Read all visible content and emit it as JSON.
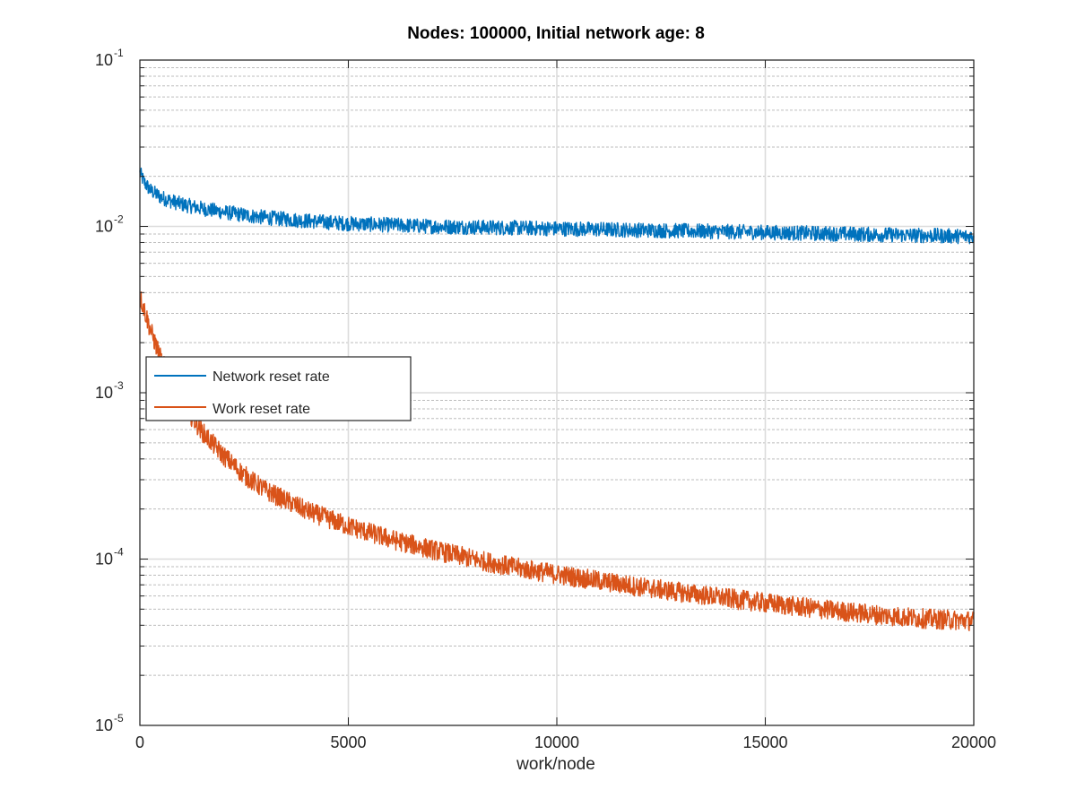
{
  "chart_data": {
    "type": "line",
    "title": "Nodes: 100000, Initial network age: 8",
    "xlabel": "work/node",
    "ylabel": "",
    "xlim": [
      0,
      20000
    ],
    "ylim": [
      1e-05,
      0.1
    ],
    "yscale": "log",
    "grid": true,
    "legend_position": "middle-left",
    "x_ticks": [
      "0",
      "5000",
      "10000",
      "15000",
      "20000"
    ],
    "y_ticks": [
      {
        "base": "10",
        "exp": "-5"
      },
      {
        "base": "10",
        "exp": "-4"
      },
      {
        "base": "10",
        "exp": "-3"
      },
      {
        "base": "10",
        "exp": "-2"
      },
      {
        "base": "10",
        "exp": "-1"
      }
    ],
    "x": [
      0,
      100,
      250,
      500,
      750,
      1000,
      1500,
      2000,
      2500,
      3000,
      4000,
      5000,
      6000,
      7000,
      8000,
      9000,
      10000,
      11000,
      12000,
      13000,
      14000,
      15000,
      16000,
      17000,
      18000,
      19000,
      20000
    ],
    "series": [
      {
        "name": "Network reset rate",
        "color": "#0072bd",
        "values": [
          0.021,
          0.0185,
          0.0165,
          0.015,
          0.0142,
          0.0136,
          0.0128,
          0.0122,
          0.0117,
          0.0113,
          0.0108,
          0.0104,
          0.0102,
          0.01,
          0.0099,
          0.0098,
          0.0097,
          0.0096,
          0.0095,
          0.0094,
          0.0093,
          0.0092,
          0.0091,
          0.009,
          0.0089,
          0.0088,
          0.0087
        ]
      },
      {
        "name": "Work reset rate",
        "color": "#d95319",
        "values": [
          0.0038,
          0.0032,
          0.0024,
          0.0016,
          0.00115,
          0.00088,
          0.00058,
          0.00042,
          0.00032,
          0.00026,
          0.000195,
          0.000158,
          0.000132,
          0.000114,
          0.0001,
          8.9e-05,
          8.1e-05,
          7.4e-05,
          6.8e-05,
          6.3e-05,
          5.85e-05,
          5.45e-05,
          5.1e-05,
          4.8e-05,
          4.55e-05,
          4.35e-05,
          4.25e-05
        ]
      }
    ]
  }
}
